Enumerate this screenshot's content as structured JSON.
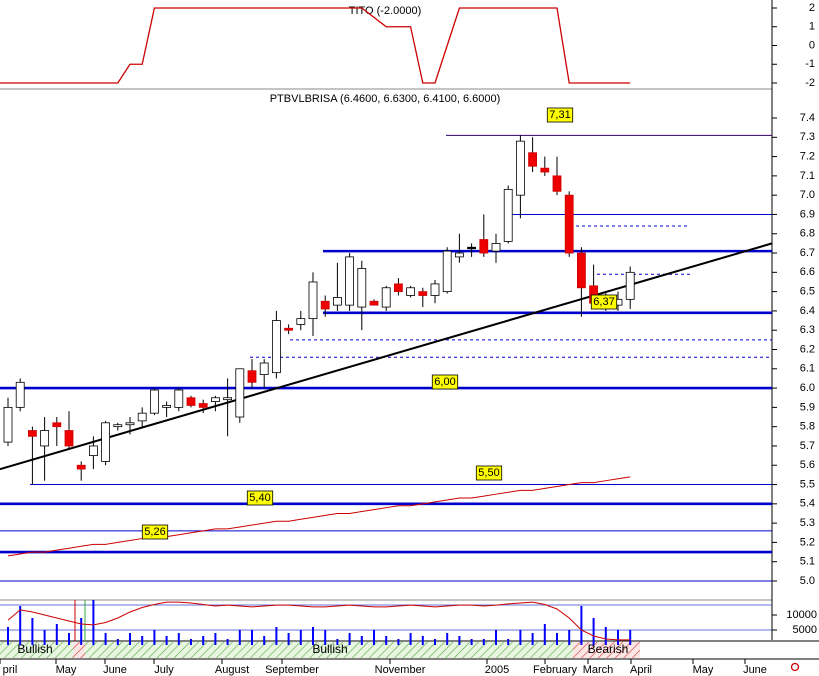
{
  "chart_data": [
    {
      "type": "line",
      "title": "TITO (-2.0000)",
      "color": "#cc0000",
      "values": [
        -2,
        -2,
        -2,
        -2,
        -2,
        -2,
        -2,
        -2,
        -2,
        -2,
        -1,
        -1,
        2,
        2,
        2,
        2,
        2,
        2,
        2,
        2,
        2,
        2,
        2,
        2,
        2,
        2,
        2,
        2,
        2,
        2,
        1.5,
        1,
        1,
        1,
        -2,
        -2,
        0,
        2,
        2,
        2,
        2,
        2,
        2,
        2,
        2,
        2,
        -2,
        -2,
        -2,
        -2,
        -2,
        -2
      ],
      "ylim": [
        -2,
        2
      ],
      "yticks": [
        2,
        1,
        0,
        -1,
        -2
      ]
    },
    {
      "type": "candlestick",
      "title": "PTBVLBRISA (6.4600, 6.6300, 6.4100, 6.6000)",
      "open": [
        5.72,
        5.9,
        5.78,
        5.7,
        5.82,
        5.78,
        5.6,
        5.65,
        5.62,
        5.8,
        5.81,
        5.83,
        5.87,
        5.9,
        5.9,
        5.95,
        5.92,
        5.93,
        5.94,
        5.85,
        6.09,
        6.07,
        6.08,
        6.31,
        6.33,
        6.36,
        6.45,
        6.43,
        6.43,
        6.42,
        6.45,
        6.42,
        6.54,
        6.48,
        6.5,
        6.48,
        6.5,
        6.68,
        6.73,
        6.77,
        6.71,
        6.76,
        7.0,
        7.22,
        7.14,
        7.1,
        7.0,
        6.7,
        6.53,
        6.45,
        6.43,
        6.46
      ],
      "high": [
        5.95,
        6.05,
        5.8,
        5.85,
        5.85,
        5.88,
        5.62,
        5.75,
        5.83,
        5.82,
        5.85,
        5.9,
        6.0,
        5.93,
        6.0,
        5.96,
        5.94,
        5.96,
        6.05,
        6.1,
        6.15,
        6.15,
        6.4,
        6.33,
        6.4,
        6.6,
        6.48,
        6.65,
        6.7,
        6.66,
        6.46,
        6.53,
        6.57,
        6.53,
        6.52,
        6.56,
        6.73,
        6.8,
        6.75,
        6.9,
        6.8,
        7.05,
        7.31,
        7.3,
        7.2,
        7.2,
        7.02,
        6.73,
        6.64,
        6.5,
        6.5,
        6.63
      ],
      "low": [
        5.7,
        5.88,
        5.5,
        5.52,
        5.7,
        5.68,
        5.52,
        5.58,
        5.6,
        5.78,
        5.76,
        5.8,
        5.86,
        5.85,
        5.88,
        5.9,
        5.87,
        5.88,
        5.75,
        5.82,
        6.0,
        6.0,
        6.05,
        6.28,
        6.3,
        6.27,
        6.37,
        6.4,
        6.4,
        6.3,
        6.43,
        6.4,
        6.48,
        6.47,
        6.42,
        6.44,
        6.49,
        6.65,
        6.68,
        6.68,
        6.65,
        6.75,
        6.88,
        7.12,
        7.1,
        7.0,
        6.68,
        6.37,
        6.42,
        6.4,
        6.4,
        6.41
      ],
      "close": [
        5.9,
        6.03,
        5.75,
        5.78,
        5.8,
        5.7,
        5.58,
        5.7,
        5.82,
        5.81,
        5.82,
        5.87,
        5.99,
        5.91,
        5.99,
        5.91,
        5.9,
        5.95,
        5.95,
        6.1,
        6.03,
        6.13,
        6.35,
        6.3,
        6.36,
        6.55,
        6.41,
        6.47,
        6.68,
        6.62,
        6.43,
        6.52,
        6.5,
        6.52,
        6.48,
        6.54,
        6.71,
        6.7,
        6.73,
        6.7,
        6.75,
        7.03,
        7.28,
        7.15,
        7.12,
        7.02,
        6.7,
        6.52,
        6.44,
        6.42,
        6.46,
        6.6
      ],
      "ma": {
        "color": "#cc0000",
        "values": [
          5.13,
          5.14,
          5.15,
          5.15,
          5.16,
          5.17,
          5.18,
          5.19,
          5.19,
          5.2,
          5.21,
          5.22,
          5.23,
          5.23,
          5.24,
          5.25,
          5.26,
          5.27,
          5.27,
          5.28,
          5.29,
          5.3,
          5.31,
          5.31,
          5.32,
          5.33,
          5.34,
          5.35,
          5.35,
          5.36,
          5.37,
          5.38,
          5.39,
          5.39,
          5.4,
          5.41,
          5.42,
          5.43,
          5.43,
          5.44,
          5.45,
          5.46,
          5.47,
          5.47,
          5.48,
          5.49,
          5.5,
          5.51,
          5.51,
          5.52,
          5.53,
          5.54
        ]
      },
      "trendline": {
        "color": "#000000",
        "values": [
          5.58,
          6.75
        ]
      },
      "levels": [
        {
          "value": 7.31,
          "style": "thin"
        },
        {
          "value": 6.9,
          "style": "thin"
        },
        {
          "value": 6.84,
          "style": "dashed"
        },
        {
          "value": 6.71,
          "style": "thick"
        },
        {
          "value": 6.59,
          "style": "dashed"
        },
        {
          "value": 6.39,
          "style": "thick"
        },
        {
          "value": 6.25,
          "style": "dashed"
        },
        {
          "value": 6.16,
          "style": "dashed"
        },
        {
          "value": 6.0,
          "style": "thick"
        },
        {
          "value": 5.5,
          "style": "thin"
        },
        {
          "value": 5.4,
          "style": "thick"
        },
        {
          "value": 5.26,
          "style": "thin"
        },
        {
          "value": 5.15,
          "style": "thick"
        },
        {
          "value": 5.0,
          "style": "thin"
        }
      ],
      "annotations": [
        {
          "value": 7.31,
          "label": "7,31"
        },
        {
          "value": 6.37,
          "label": "6,37"
        },
        {
          "value": 6.0,
          "label": "6,00"
        },
        {
          "value": 5.5,
          "label": "5,50"
        },
        {
          "value": 5.4,
          "label": "5,40"
        },
        {
          "value": 5.26,
          "label": "5,26"
        }
      ],
      "ylim": [
        5.0,
        7.4
      ],
      "yticks": [
        7.4,
        7.3,
        7.2,
        7.1,
        {
          "value": 7,
          "label": "7.0"
        },
        6.9,
        6.8,
        6.7,
        6.6,
        6.5,
        6.4,
        6.3,
        6.2,
        6.1,
        {
          "value": 6,
          "label": "6.0"
        },
        5.9,
        5.8,
        5.7,
        5.6,
        5.5,
        5.4,
        5.3,
        5.2,
        5.1,
        {
          "value": 5,
          "label": "5.0"
        }
      ],
      "x_labels": [
        "pril",
        "May",
        "June",
        "July",
        "August",
        "September",
        "November",
        "2005",
        "February",
        "March",
        "April",
        "May",
        "June"
      ],
      "bands": [
        {
          "label": "Bullish"
        },
        {
          "label": "Bullish"
        },
        {
          "label": "Bearish"
        }
      ]
    },
    {
      "type": "bar",
      "color": "#0000ff",
      "values": [
        6000,
        13000,
        9000,
        5000,
        7000,
        4000,
        9000,
        15000,
        4000,
        2000,
        4000,
        3000,
        5000,
        3000,
        4000,
        2000,
        3000,
        4000,
        2000,
        5000,
        5000,
        3000,
        6000,
        4000,
        5000,
        6000,
        5000,
        2000,
        4000,
        3000,
        5000,
        3000,
        2000,
        4000,
        3000,
        2000,
        4000,
        3000,
        2000,
        2000,
        5000,
        2000,
        5000,
        4000,
        7000,
        4000,
        5000,
        13000,
        9000,
        6000,
        5000,
        5000
      ],
      "oscillator": {
        "color": "#cc0000",
        "values": [
          8300,
          11700,
          11000,
          10000,
          9000,
          8000,
          7000,
          6700,
          7500,
          9000,
          11000,
          12500,
          13500,
          14300,
          14300,
          14000,
          13500,
          13000,
          13300,
          13000,
          12700,
          13000,
          13300,
          13300,
          13000,
          12700,
          12700,
          13000,
          13300,
          13000,
          12700,
          12700,
          13000,
          13300,
          13000,
          12700,
          13000,
          13300,
          13300,
          13000,
          13300,
          13700,
          14000,
          14300,
          13500,
          12000,
          9000,
          5000,
          3000,
          2000,
          1700,
          1700
        ]
      },
      "ylim": [
        0,
        15000
      ],
      "yticks": [
        10000,
        5000
      ]
    }
  ]
}
